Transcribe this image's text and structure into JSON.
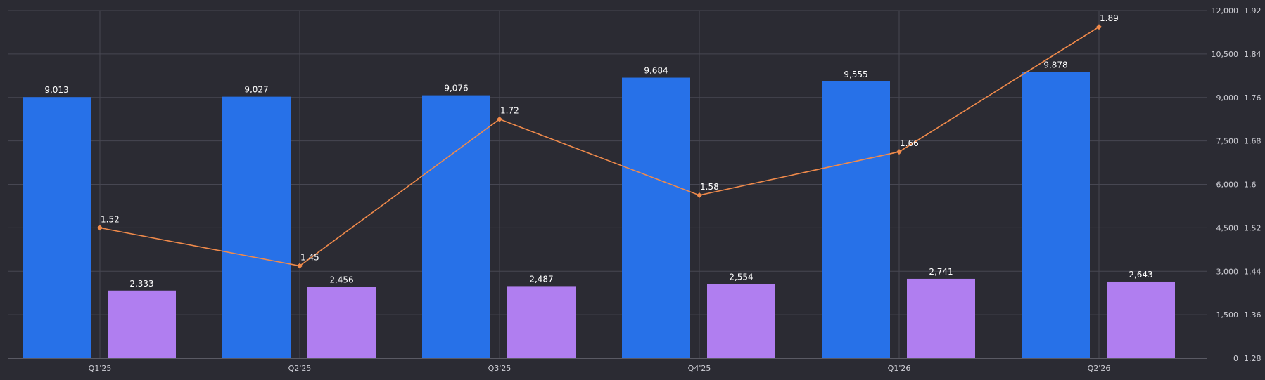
{
  "chart_data": {
    "type": "bar",
    "categories": [
      "Q1'25",
      "Q2'25",
      "Q3'25",
      "Q4'25",
      "Q1'26",
      "Q2'26"
    ],
    "series": [
      {
        "type": "bar",
        "axis": "left",
        "color": "#2771e8",
        "values": [
          9013,
          9027,
          9076,
          9684,
          9555,
          9878
        ],
        "labels": [
          "9,013",
          "9,027",
          "9,076",
          "9,684",
          "9,555",
          "9,878"
        ]
      },
      {
        "type": "bar",
        "axis": "left",
        "color": "#b07ef0",
        "values": [
          2333,
          2456,
          2487,
          2554,
          2741,
          2643
        ],
        "labels": [
          "2,333",
          "2,456",
          "2,487",
          "2,554",
          "2,741",
          "2,643"
        ]
      },
      {
        "type": "line",
        "axis": "right",
        "color": "#f08a4b",
        "values": [
          1.52,
          1.45,
          1.72,
          1.58,
          1.66,
          1.89
        ],
        "labels": [
          "1.52",
          "1.45",
          "1.72",
          "1.58",
          "1.66",
          "1.89"
        ]
      }
    ],
    "y_left": {
      "ylim": [
        0,
        12000
      ],
      "ticks": [
        0,
        1500,
        3000,
        4500,
        6000,
        7500,
        9000,
        10500,
        12000
      ],
      "tick_labels": [
        "0",
        "1,500",
        "3,000",
        "4,500",
        "6,000",
        "7,500",
        "9,000",
        "10,500",
        "12,000"
      ]
    },
    "y_right": {
      "ylim": [
        1.28,
        1.92
      ],
      "ticks": [
        1.28,
        1.36,
        1.44,
        1.52,
        1.6,
        1.68,
        1.76,
        1.84,
        1.92
      ],
      "tick_labels": [
        "1.28",
        "1.36",
        "1.44",
        "1.52",
        "1.6",
        "1.68",
        "1.76",
        "1.84",
        "1.92"
      ]
    },
    "grid": true,
    "legend": "none"
  },
  "colors": {
    "background": "#2b2b33",
    "grid": "#474752",
    "axis_text": "#cfcfd6",
    "label_text": "#ffffff"
  }
}
